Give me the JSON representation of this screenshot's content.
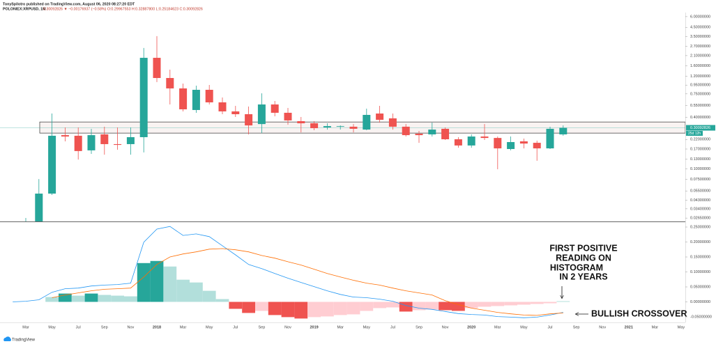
{
  "header": {
    "author": "TonySpilotro published on TradingView.com, August 06, 2020 08:27:20 EDT",
    "symbol": "POLONIEX:XRPUSD, 1M",
    "quote": "0.30092826 ▼ −0.00176937 (−0.58%)  O:0.29967553  H:0.32887800  L:0.25184623  C:0.30092826"
  },
  "footer": {
    "brand": "TradingView"
  },
  "chart_data": {
    "type": "candlestick",
    "log_scale": true,
    "grid": false,
    "up_color": "#26a69a",
    "down_color": "#ef5350",
    "categories": [
      null,
      "Mar",
      null,
      "May",
      null,
      "Jul",
      null,
      "Sep",
      null,
      "Nov",
      null,
      "2018",
      null,
      "Mar",
      null,
      "May",
      null,
      "Jul",
      null,
      "Sep",
      null,
      "Nov",
      null,
      "2019",
      null,
      "Mar",
      null,
      "May",
      null,
      "Jul",
      null,
      "Sep",
      null,
      "Nov",
      null,
      "2020",
      null,
      "Mar",
      null,
      "May",
      null,
      "Jul",
      null,
      "Sep",
      null,
      "Nov",
      null,
      "2021",
      null,
      "Mar",
      null,
      "May"
    ],
    "open": [
      null,
      0.0235,
      0.0215,
      0.0512,
      0.247,
      0.243,
      0.164,
      0.252,
      0.194,
      0.194,
      0.234,
      1.98,
      1.15,
      0.869,
      0.486,
      0.837,
      0.597,
      0.468,
      0.434,
      0.333,
      0.564,
      0.451,
      0.36,
      0.34,
      0.304,
      0.31,
      0.31,
      0.287,
      0.442,
      0.388,
      0.31,
      0.257,
      0.252,
      0.293,
      0.221,
      0.187,
      0.238,
      0.229,
      0.17,
      0.209,
      0.201,
      0.173,
      0.252,
      null,
      null,
      null,
      null,
      null,
      null,
      null,
      null,
      null
    ],
    "high": [
      null,
      0.0266,
      0.0757,
      0.442,
      0.304,
      0.304,
      0.293,
      0.31,
      0.304,
      0.304,
      2.58,
      3.55,
      1.44,
      0.99,
      0.937,
      0.954,
      0.681,
      0.543,
      0.533,
      0.762,
      0.62,
      0.514,
      0.403,
      0.36,
      0.34,
      0.321,
      0.333,
      0.504,
      0.543,
      0.442,
      0.333,
      0.277,
      0.346,
      0.304,
      0.234,
      0.252,
      0.333,
      0.238,
      0.238,
      0.225,
      0.213,
      0.31,
      0.321,
      null,
      null,
      null,
      null,
      null,
      null,
      null,
      null,
      null
    ],
    "low": [
      null,
      0.022,
      0.0205,
      0.0493,
      0.209,
      0.128,
      0.149,
      0.146,
      0.167,
      0.146,
      0.155,
      1.03,
      0.564,
      0.468,
      0.451,
      0.564,
      0.434,
      0.403,
      0.252,
      0.261,
      0.41,
      0.327,
      0.266,
      0.282,
      0.287,
      0.287,
      0.266,
      0.282,
      0.346,
      0.287,
      0.238,
      0.201,
      0.238,
      0.217,
      0.176,
      0.176,
      0.217,
      0.0986,
      0.164,
      0.173,
      0.124,
      0.17,
      0.243,
      null,
      null,
      null,
      null,
      null,
      null,
      null,
      null,
      null
    ],
    "close": [
      null,
      0.024,
      0.0512,
      0.243,
      0.238,
      0.161,
      0.247,
      0.194,
      0.19,
      0.234,
      1.98,
      1.15,
      0.869,
      0.495,
      0.837,
      0.597,
      0.468,
      0.434,
      0.321,
      0.564,
      0.451,
      0.367,
      0.34,
      0.298,
      0.315,
      0.315,
      0.293,
      0.426,
      0.373,
      0.31,
      0.247,
      0.247,
      0.287,
      0.221,
      0.187,
      0.238,
      0.229,
      0.173,
      0.205,
      0.197,
      0.173,
      0.293,
      0.30092826,
      null,
      null,
      null,
      null,
      null,
      null,
      null,
      null,
      null
    ],
    "ylim": [
      0.0242,
      6.7
    ],
    "yticks": [
      {
        "value": 6,
        "label": "6.00000000"
      },
      {
        "value": 4.5,
        "label": "4.50000000"
      },
      {
        "value": 3.5,
        "label": "3.50000000"
      },
      {
        "value": 2.7,
        "label": "2.70000000"
      },
      {
        "value": 2.1,
        "label": "2.10000000"
      },
      {
        "value": 1.6,
        "label": "1.60000000"
      },
      {
        "value": 1.2,
        "label": "1.20000000"
      },
      {
        "value": 0.95,
        "label": "0.95000000"
      },
      {
        "value": 0.75,
        "label": "0.75000000"
      },
      {
        "value": 0.55,
        "label": "0.55000000"
      },
      {
        "value": 0.4,
        "label": "0.40000000"
      },
      {
        "value": 0.22,
        "label": "0.22000000"
      },
      {
        "value": 0.17,
        "label": "0.17000000"
      },
      {
        "value": 0.13,
        "label": "0.13000000"
      },
      {
        "value": 0.1,
        "label": "0.10000000"
      },
      {
        "value": 0.075,
        "label": "0.07500000"
      },
      {
        "value": 0.055,
        "label": "0.05500000"
      },
      {
        "value": 0.043,
        "label": "0.04300000"
      },
      {
        "value": 0.034,
        "label": "0.03400000"
      },
      {
        "value": 0.0265,
        "label": "0.02650000"
      }
    ],
    "last_price": 0.30092826,
    "last_price_color": "#26a69a",
    "countdown": "25d 12h",
    "zone": {
      "low": 0.261,
      "high": 0.352
    },
    "macd": {
      "type": "macd",
      "ylim": [
        -0.0686,
        0.264
      ],
      "yticks": [
        {
          "value": 0.25,
          "label": "0.25000000"
        },
        {
          "value": 0.2,
          "label": "0.20000000"
        },
        {
          "value": 0.15,
          "label": "0.15000000"
        },
        {
          "value": 0.1,
          "label": "0.10000000"
        },
        {
          "value": 0.05,
          "label": "0.05000000"
        },
        {
          "value": 0,
          "label": "0.00000000"
        },
        {
          "value": -0.05,
          "label": "-0.05000000"
        }
      ],
      "histogram": {
        "values": [
          null,
          null,
          null,
          0.0162,
          0.0278,
          0.0208,
          0.0278,
          0.0232,
          0.0208,
          0.0185,
          0.1296,
          0.1366,
          0.1181,
          0.0741,
          0.0648,
          0.037,
          0.0093,
          -0.0232,
          -0.037,
          -0.0301,
          -0.044,
          -0.0509,
          -0.0556,
          -0.0509,
          -0.0486,
          -0.044,
          -0.0417,
          -0.0301,
          -0.0208,
          -0.0185,
          -0.0324,
          -0.0278,
          -0.0255,
          -0.0278,
          -0.0301,
          -0.0208,
          -0.0162,
          -0.0139,
          -0.0116,
          -0.0093,
          -0.0069,
          -0.0046,
          0.0023,
          null,
          null,
          null,
          null,
          null,
          null,
          null,
          null,
          null
        ],
        "colors": [
          null,
          null,
          null,
          "#b2dfdb",
          "#26a69a",
          "#b2dfdb",
          "#26a69a",
          "#b2dfdb",
          "#b2dfdb",
          "#b2dfdb",
          "#26a69a",
          "#26a69a",
          "#b2dfdb",
          "#b2dfdb",
          "#b2dfdb",
          "#b2dfdb",
          "#b2dfdb",
          "#ef5350",
          "#ef5350",
          "#ffcdd2",
          "#ef5350",
          "#ef5350",
          "#ef5350",
          "#ffcdd2",
          "#ffcdd2",
          "#ffcdd2",
          "#ffcdd2",
          "#ffcdd2",
          "#ffcdd2",
          "#ffcdd2",
          "#ef5350",
          "#ffcdd2",
          "#ffcdd2",
          "#ef5350",
          "#ef5350",
          "#ffcdd2",
          "#ffcdd2",
          "#ffcdd2",
          "#ffcdd2",
          "#ffcdd2",
          "#ffcdd2",
          "#ffcdd2",
          "#b2dfdb",
          null,
          null,
          null,
          null,
          null,
          null,
          null,
          null,
          null
        ]
      },
      "series": [
        {
          "color": "#2196f3",
          "values": [
            0,
            0.002,
            0.007,
            0.032,
            0.044,
            0.046,
            0.053,
            0.056,
            0.058,
            0.0625,
            0.199,
            0.243,
            0.252,
            0.222,
            0.227,
            0.218,
            0.1875,
            0.157,
            0.125,
            0.111,
            0.095,
            0.079,
            0.065,
            0.051,
            0.037,
            0.025,
            0.016,
            0.014,
            0.009,
            0.002,
            -0.012,
            -0.021,
            -0.025,
            -0.032,
            -0.039,
            -0.042,
            -0.044,
            -0.049,
            -0.051,
            -0.053,
            -0.051,
            -0.044,
            -0.035,
            null,
            null,
            null,
            null,
            null,
            null,
            null,
            null,
            null
          ]
        },
        {
          "color": "#ff6d00",
          "values": [
            null,
            null,
            null,
            0.014,
            0.023,
            0.03,
            0.037,
            0.042,
            0.044,
            0.046,
            0.083,
            0.125,
            0.15,
            0.16,
            0.167,
            0.176,
            0.178,
            0.174,
            0.167,
            0.155,
            0.146,
            0.134,
            0.123,
            0.109,
            0.095,
            0.083,
            0.072,
            0.0625,
            0.056,
            0.046,
            0.037,
            0.03,
            0.023,
            0.004,
            -0.009,
            -0.021,
            -0.028,
            -0.035,
            -0.04,
            -0.044,
            -0.045,
            -0.04,
            -0.037,
            null,
            null,
            null,
            null,
            null,
            null,
            null,
            null,
            null
          ]
        }
      ]
    },
    "annotations": [
      {
        "lines": [
          "FIRST POSITIVE",
          "READING ON",
          "HISTOGRAM",
          "IN 2 YEARS"
        ]
      },
      {
        "lines": [
          "BULLISH CROSSOVER"
        ]
      }
    ]
  }
}
